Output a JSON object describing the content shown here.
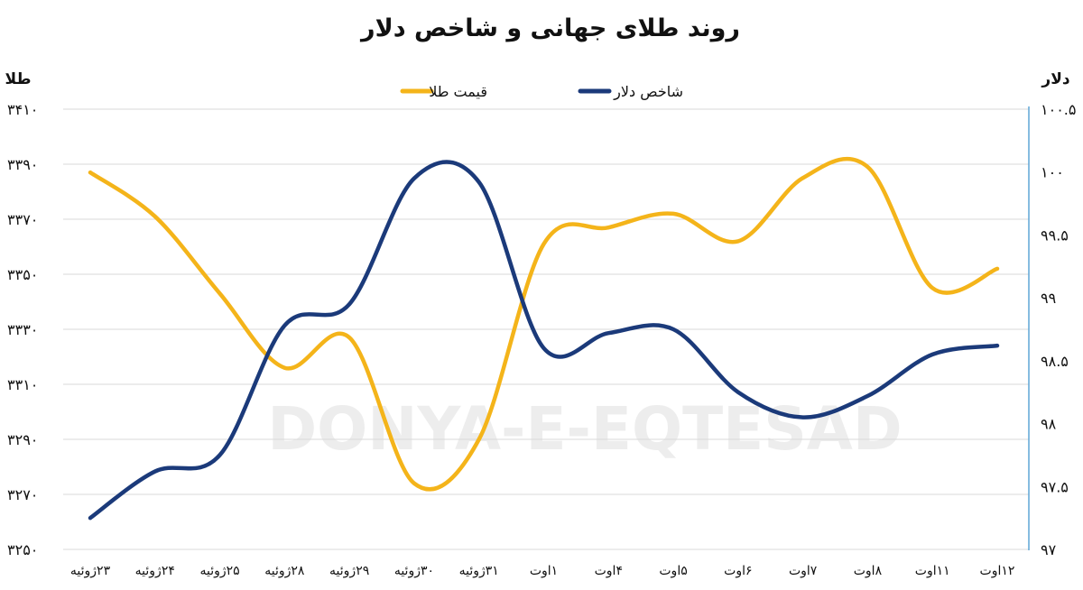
{
  "chart_data": {
    "type": "line",
    "title": "روند طلای جهانی و شاخص دلار",
    "watermark": "DONYA-E-EQTESAD",
    "grid": true,
    "legend_position": "top-center",
    "categories": [
      "۲۳ژوئیه",
      "۲۴ژوئیه",
      "۲۵ژوئیه",
      "۲۸ژوئیه",
      "۲۹ژوئیه",
      "۳۰ژوئیه",
      "۳۱ژوئیه",
      "۱اوت",
      "۴اوت",
      "۵اوت",
      "۶اوت",
      "۷اوت",
      "۸اوت",
      "۱۱اوت",
      "۱۲اوت"
    ],
    "left_axis": {
      "label": "طلا",
      "range": [
        3250,
        3410
      ],
      "ticks": [
        3250,
        3270,
        3290,
        3310,
        3330,
        3350,
        3370,
        3390,
        3410
      ],
      "tick_labels": [
        "۳۲۵۰",
        "۳۲۷۰",
        "۳۲۹۰",
        "۳۳۱۰",
        "۳۳۳۰",
        "۳۳۵۰",
        "۳۳۷۰",
        "۳۳۹۰",
        "۳۴۱۰"
      ]
    },
    "right_axis": {
      "label": "دلار",
      "range": [
        97,
        100.5
      ],
      "ticks": [
        97,
        97.5,
        98,
        98.5,
        99,
        99.5,
        100,
        100.5
      ],
      "tick_labels": [
        "۹۷",
        "۹۷.۵",
        "۹۸",
        "۹۸.۵",
        "۹۹",
        "۹۹.۵",
        "۱۰۰",
        "۱۰۰.۵"
      ]
    },
    "series": [
      {
        "name": "قیمت طلا",
        "axis": "left",
        "color": "#f4b41a",
        "values": [
          3387,
          3371,
          3343,
          3316,
          3327,
          3274,
          3290,
          3361,
          3367,
          3372,
          3362,
          3385,
          3389,
          3345,
          3352
        ]
      },
      {
        "name": "شاخص دلار",
        "axis": "right",
        "color": "#1b3a7a",
        "values": [
          97.25,
          97.62,
          97.75,
          98.78,
          98.95,
          99.95,
          99.92,
          98.6,
          98.72,
          98.75,
          98.25,
          98.05,
          98.22,
          98.55,
          98.62
        ]
      }
    ]
  }
}
